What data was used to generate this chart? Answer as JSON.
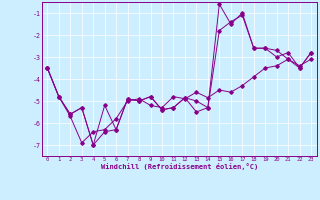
{
  "xlabel": "Windchill (Refroidissement éolien,°C)",
  "bg_color": "#cceeff",
  "line_color": "#880088",
  "xlim": [
    -0.5,
    23.5
  ],
  "ylim": [
    -7.5,
    -0.5
  ],
  "yticks": [
    -7,
    -6,
    -5,
    -4,
    -3,
    -2,
    -1
  ],
  "xticks": [
    0,
    1,
    2,
    3,
    4,
    5,
    6,
    7,
    8,
    9,
    10,
    11,
    12,
    13,
    14,
    15,
    16,
    17,
    18,
    19,
    20,
    21,
    22,
    23
  ],
  "series1_x": [
    0,
    1,
    2,
    3,
    4,
    5,
    6,
    7,
    8,
    9,
    10,
    11,
    12,
    13,
    14,
    15,
    16,
    17,
    18,
    19,
    20,
    21,
    22,
    23
  ],
  "series1_y": [
    -3.5,
    -4.8,
    -5.7,
    -6.9,
    -6.4,
    -6.3,
    -5.8,
    -5.0,
    -4.9,
    -5.2,
    -5.3,
    -4.8,
    -4.9,
    -4.6,
    -4.85,
    -4.5,
    -4.6,
    -4.3,
    -3.9,
    -3.5,
    -3.4,
    -3.1,
    -3.4,
    -3.1
  ],
  "series2_x": [
    0,
    1,
    2,
    3,
    4,
    5,
    6,
    7,
    8,
    9,
    10,
    11,
    12,
    13,
    14,
    15,
    16,
    17,
    18,
    19,
    20,
    21,
    22,
    23
  ],
  "series2_y": [
    -3.5,
    -4.8,
    -5.6,
    -5.3,
    -7.0,
    -5.2,
    -6.3,
    -4.9,
    -5.0,
    -4.8,
    -5.4,
    -5.3,
    -4.85,
    -5.5,
    -5.3,
    -1.8,
    -1.4,
    -1.1,
    -2.6,
    -2.6,
    -3.0,
    -2.8,
    -3.5,
    -2.8
  ],
  "series3_x": [
    0,
    1,
    2,
    3,
    4,
    5,
    6,
    7,
    8,
    9,
    10,
    11,
    12,
    13,
    14,
    15,
    16,
    17,
    18,
    19,
    20,
    21,
    22,
    23
  ],
  "series3_y": [
    -3.5,
    -4.8,
    -5.6,
    -5.3,
    -7.0,
    -6.4,
    -6.3,
    -4.9,
    -5.0,
    -4.8,
    -5.4,
    -5.3,
    -4.85,
    -5.0,
    -5.3,
    -0.6,
    -1.5,
    -1.0,
    -2.6,
    -2.6,
    -2.7,
    -3.1,
    -3.5,
    -2.8
  ]
}
